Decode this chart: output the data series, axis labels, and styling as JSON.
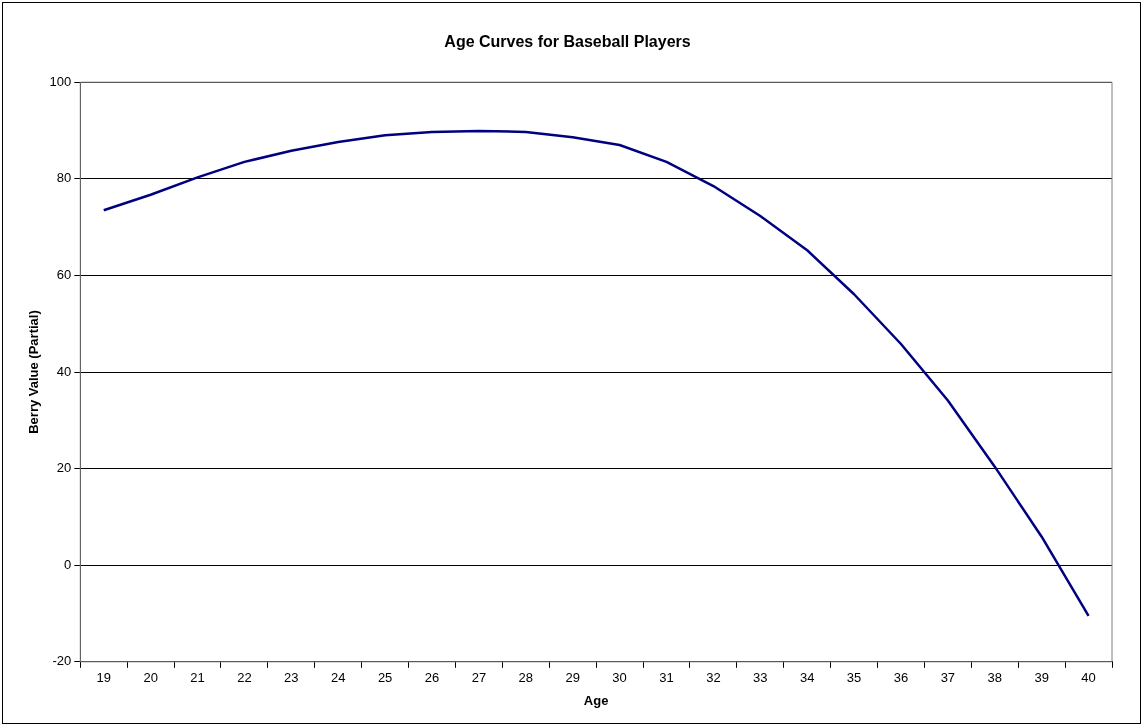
{
  "chart_data": {
    "type": "line",
    "title": "Age Curves for Baseball Players",
    "xlabel": "Age",
    "ylabel": "Berry Value (Partial)",
    "categories": [
      "19",
      "20",
      "21",
      "22",
      "23",
      "24",
      "25",
      "26",
      "27",
      "28",
      "29",
      "30",
      "31",
      "32",
      "33",
      "34",
      "35",
      "36",
      "37",
      "38",
      "39",
      "40"
    ],
    "series": [
      {
        "color": "#000080",
        "values": [
          73.5,
          76.7,
          80.3,
          83.5,
          85.8,
          87.6,
          89.0,
          89.7,
          89.9,
          89.7,
          88.6,
          87.0,
          83.5,
          78.5,
          72.3,
          65.2,
          56.1,
          45.8,
          34.1,
          20.4,
          5.9,
          -10.5
        ]
      }
    ],
    "ylim": [
      -20,
      100
    ],
    "yticks": [
      -20,
      0,
      20,
      40,
      60,
      80,
      100
    ],
    "grid": "y",
    "legend": false,
    "marker": "none",
    "line_style": "solid"
  }
}
